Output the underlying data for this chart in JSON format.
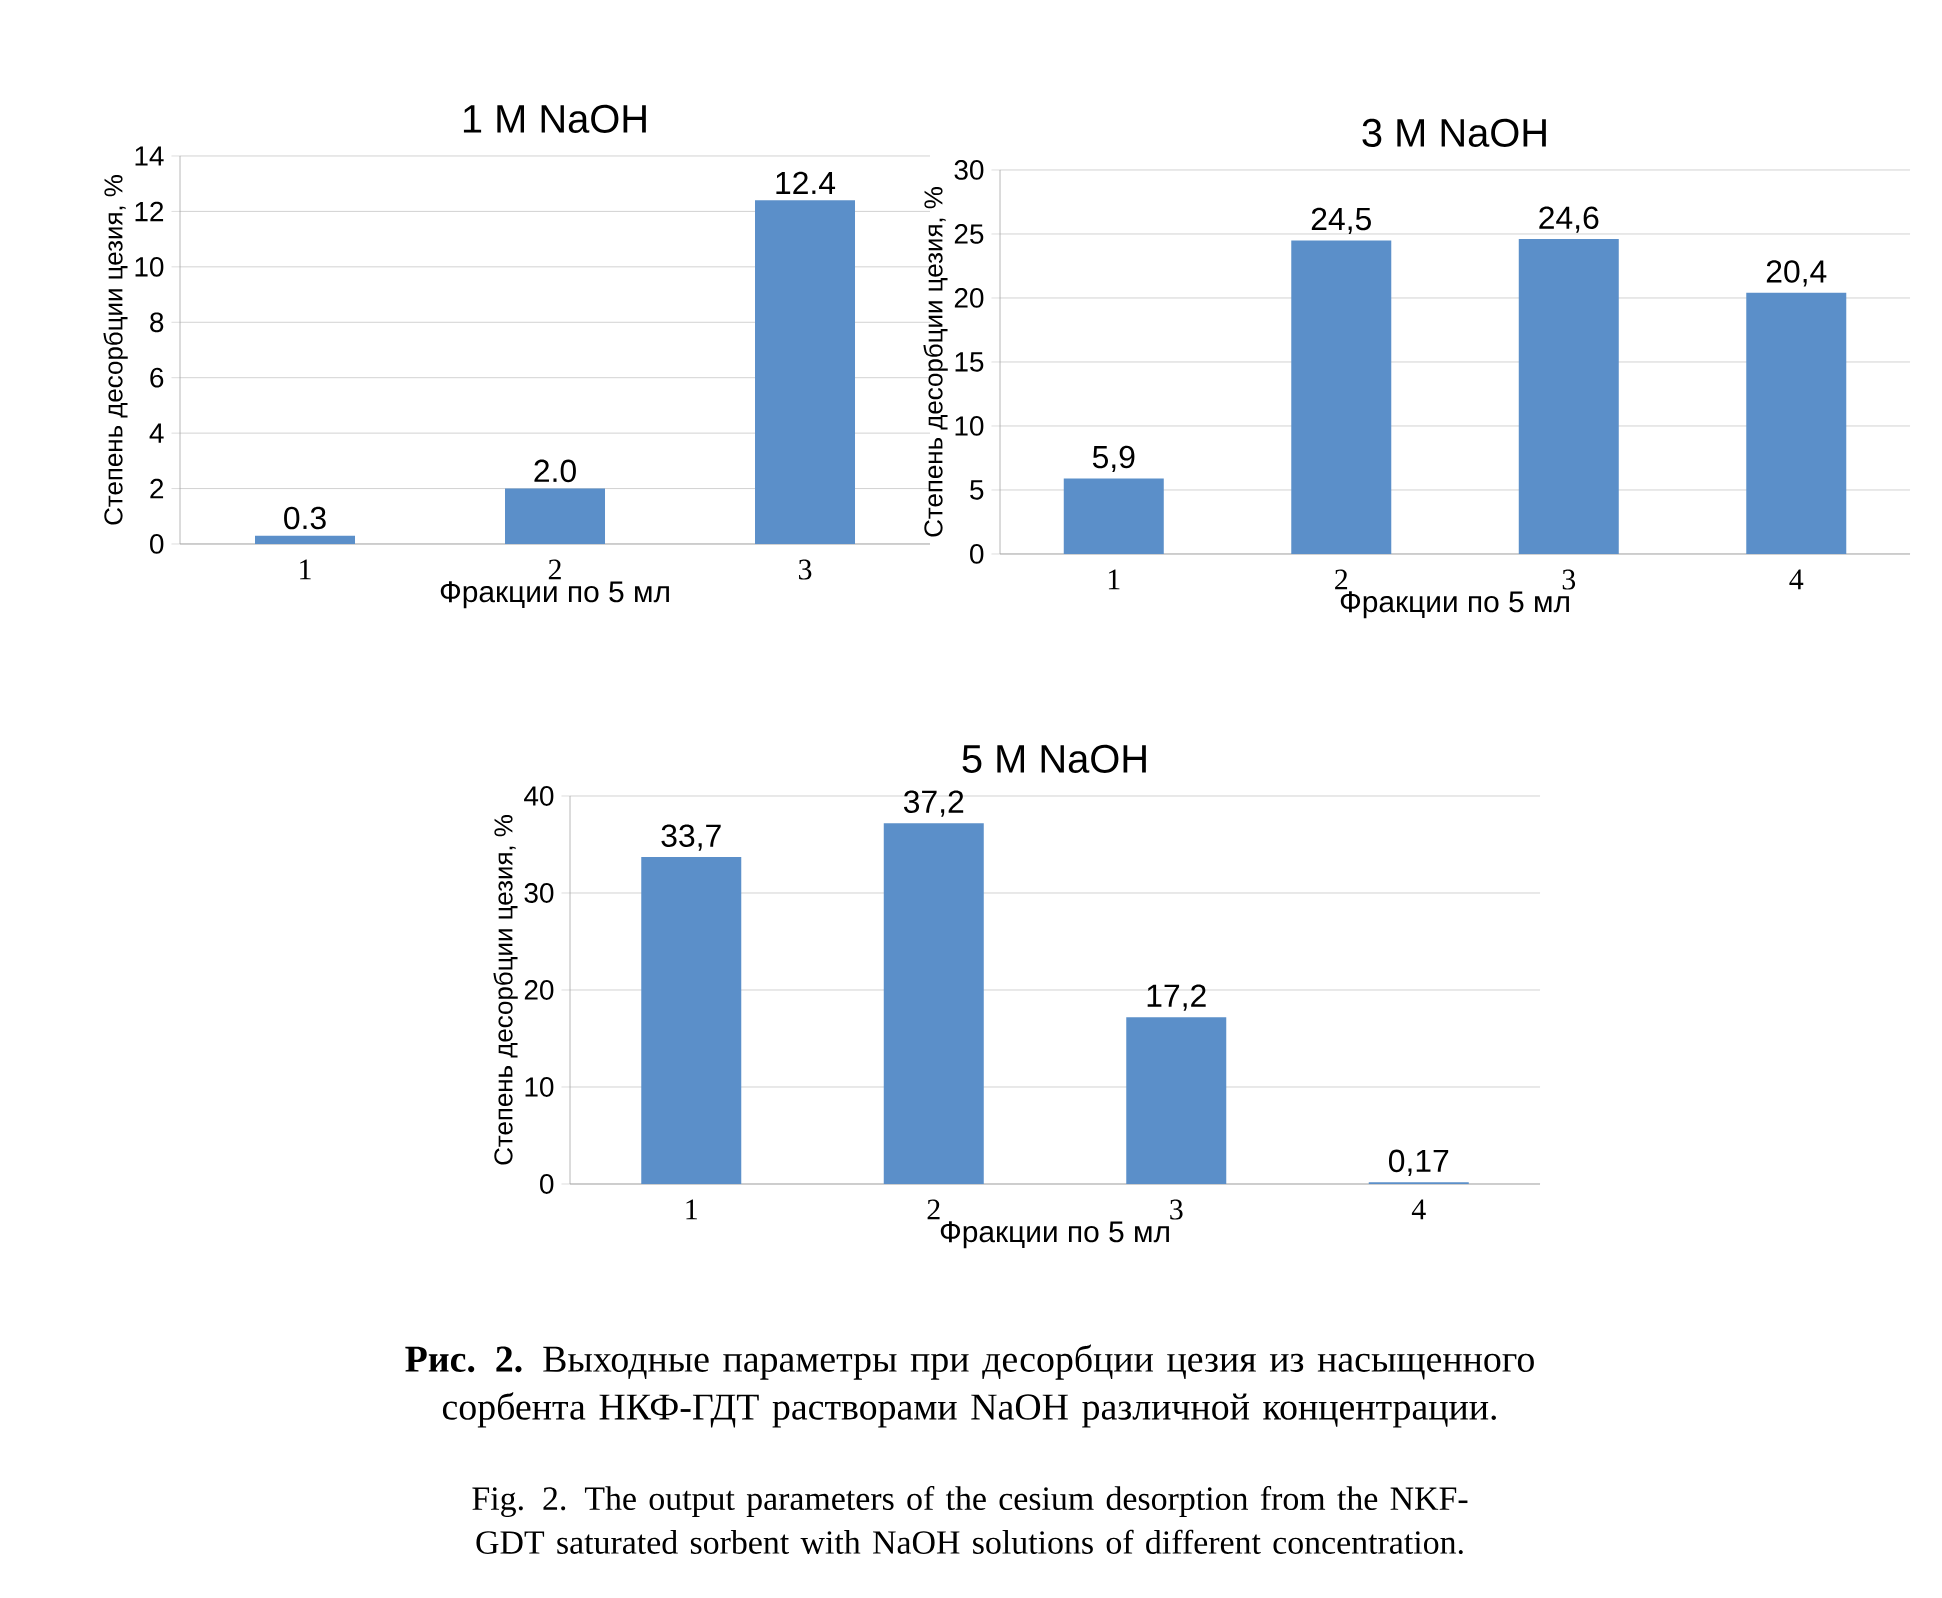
{
  "chart_data": [
    {
      "type": "bar",
      "title": "1 M NaOH",
      "xlabel": "Фракции по 5 мл",
      "ylabel": "Степень десорбции цезия, %",
      "categories": [
        "1",
        "2",
        "3"
      ],
      "values": [
        0.3,
        2.0,
        12.4
      ],
      "value_labels": [
        "0.3",
        "2.0",
        "12.4"
      ],
      "color": "#5b8fc9",
      "ylim": [
        0,
        14
      ],
      "yticks": [
        0,
        2,
        4,
        6,
        8,
        10,
        12,
        14
      ],
      "grid": "y"
    },
    {
      "type": "bar",
      "title": "3 M NaOH",
      "xlabel": "Фракции по 5 мл",
      "ylabel": "Степень десорбции цезия, %",
      "categories": [
        "1",
        "2",
        "3",
        "4"
      ],
      "values": [
        5.9,
        24.5,
        24.6,
        20.4
      ],
      "value_labels": [
        "5,9",
        "24,5",
        "24,6",
        "20,4"
      ],
      "color": "#5b8fc9",
      "ylim": [
        0,
        30
      ],
      "yticks": [
        0,
        5,
        10,
        15,
        20,
        25,
        30
      ],
      "grid": "y"
    },
    {
      "type": "bar",
      "title": "5 M NaOH",
      "xlabel": "Фракции по 5 мл",
      "ylabel": "Степень десорбции цезия, %",
      "categories": [
        "1",
        "2",
        "3",
        "4"
      ],
      "values": [
        33.7,
        37.2,
        17.2,
        0.17
      ],
      "value_labels": [
        "33,7",
        "37,2",
        "17,2",
        "0,17"
      ],
      "color": "#5b8fc9",
      "ylim": [
        0,
        40
      ],
      "yticks": [
        0,
        10,
        20,
        30,
        40
      ],
      "grid": "y",
      "annotations": [
        "**Рис. 2.** Выходные параметры при десорбции цезия из насыщенного сорбента НКФ-ГДТ растворами NaOH различной концентрации.",
        "Fig. 2. The output parameters of the cesium desorption from the NKF-GDT saturated sorbent with NaOH solutions of different concentration."
      ]
    }
  ]
}
